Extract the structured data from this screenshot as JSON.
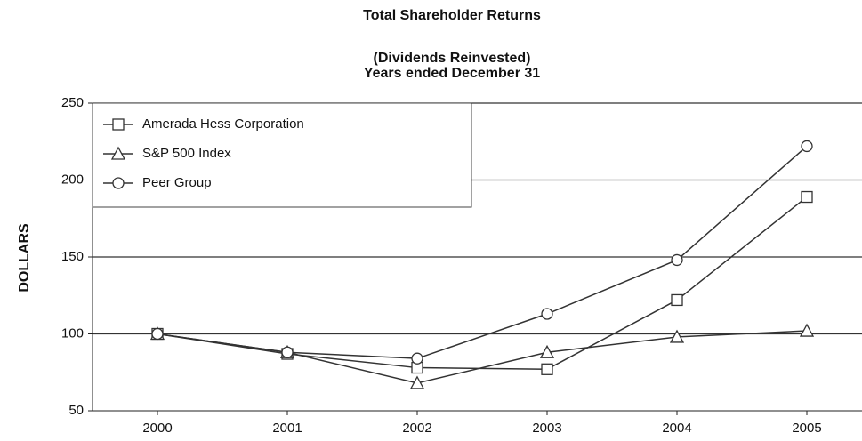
{
  "chart_data": {
    "type": "line",
    "title": "Total Shareholder Returns",
    "subtitle": [
      "(Dividends Reinvested)",
      "Years ended December 31"
    ],
    "y_label": "DOLLARS",
    "categories": [
      "2000",
      "2001",
      "2002",
      "2003",
      "2004",
      "2005"
    ],
    "series": [
      {
        "name": "Amerada Hess Corporation",
        "color": "#333333",
        "marker": "square",
        "values": [
          100,
          87,
          78,
          77,
          122,
          189
        ]
      },
      {
        "name": "S&P 500 Index",
        "color": "#333333",
        "marker": "triangle",
        "values": [
          100,
          88,
          68,
          88,
          98,
          102
        ]
      },
      {
        "name": "Peer Group",
        "color": "#333333",
        "marker": "circle",
        "values": [
          100,
          88,
          84,
          113,
          148,
          222
        ]
      }
    ],
    "ylim": [
      50,
      250
    ],
    "yticks": [
      50,
      100,
      150,
      200,
      250
    ],
    "grid": true,
    "legend": "upper left"
  }
}
